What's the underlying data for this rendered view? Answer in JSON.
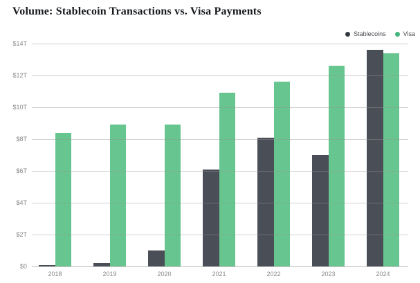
{
  "header": {
    "title": "Volume: Stablecoin Transactions vs. Visa Payments"
  },
  "legend": {
    "items": [
      {
        "label": "Stablecoins",
        "color": "#33383f"
      },
      {
        "label": "Visa",
        "color": "#44b57c"
      }
    ]
  },
  "chart_data": {
    "type": "bar",
    "title": "Volume: Stablecoin Transactions vs. Visa Payments",
    "unit": "trillion USD",
    "categories": [
      "2018",
      "2019",
      "2020",
      "2021",
      "2022",
      "2023",
      "2024"
    ],
    "series": [
      {
        "name": "Stablecoins",
        "color": "#4a4e57",
        "values": [
          0.1,
          0.2,
          1.0,
          6.1,
          8.1,
          7.0,
          13.6
        ]
      },
      {
        "name": "Visa",
        "color": "#67c68f",
        "values": [
          8.4,
          8.9,
          8.9,
          10.9,
          11.6,
          12.6,
          13.4
        ]
      }
    ],
    "ylim": [
      0,
      14
    ],
    "ytick_step": 2,
    "ytick_labels": [
      "$0",
      "$2T",
      "$4T",
      "$6T",
      "$8T",
      "$10T",
      "$12T",
      "$14T"
    ],
    "grid": true,
    "legend_position": "top-right"
  }
}
